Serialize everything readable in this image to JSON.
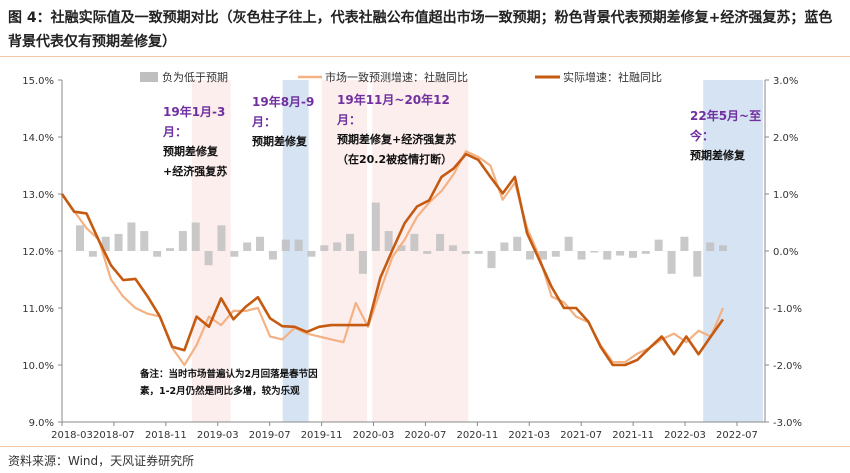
{
  "title": "图 4：社融实际值及一致预期对比（灰色柱子往上，代表社融公布值超出市场一致预期；粉色背景代表预期差修复+经济强复苏；蓝色背景代表仅有预期差修复）",
  "source": "资料来源：Wind，天风证券研究所",
  "annotations": [
    {
      "header": "19年1月-3月：",
      "body": "预期差修复+经济强复苏"
    },
    {
      "header": "19年8月-9月：",
      "body": "预期差修复"
    },
    {
      "header": "19年11月~20年12月：",
      "body": "预期差修复+经济强复苏（在20.2被疫情打断）"
    },
    {
      "header": "22年5月~至今：",
      "body": "预期差修复"
    }
  ],
  "note": "备注：当时市场普遍认为2月回落是春节因素，1-2月仍然是同比多增，较为乐观",
  "chart_data": {
    "type": "line",
    "title": "",
    "colors": {
      "actual": "#c55a11",
      "expected": "#f4b183",
      "bars": "#bfbfbf",
      "pink": "#fdeeee",
      "blue": "#d6e3f3"
    },
    "legend": [
      "负为低于预期",
      "市场一致预测增速：社融同比",
      "实际增速：社融同比"
    ],
    "legend_position": "top",
    "x_ticks": [
      "2018-03",
      "2018-07",
      "2018-11",
      "2019-03",
      "2019-07",
      "2019-11",
      "2020-03",
      "2020-07",
      "2020-11",
      "2021-03",
      "2021-07",
      "2021-11",
      "2022-03",
      "2022-07"
    ],
    "y_left": {
      "ticks": [
        "9.0%",
        "10.0%",
        "11.0%",
        "12.0%",
        "13.0%",
        "14.0%",
        "15.0%"
      ],
      "range": [
        9,
        15
      ]
    },
    "y_right": {
      "ticks": [
        "-3.0%",
        "-2.0%",
        "-1.0%",
        "0.0%",
        "1.0%",
        "2.0%",
        "3.0%"
      ],
      "range": [
        -3,
        3
      ]
    },
    "bands": [
      {
        "color": "pink",
        "start": 10,
        "end": 13
      },
      {
        "color": "blue",
        "start": 17,
        "end": 19
      },
      {
        "color": "pink",
        "start": 20,
        "end": 23.5
      },
      {
        "color": "pink",
        "start": 23.9,
        "end": 31.3
      },
      {
        "color": "blue",
        "start": 49.4,
        "end": 54
      }
    ],
    "series": [
      {
        "name": "实际增速：社融同比",
        "values": [
          13.0,
          12.69,
          12.66,
          12.19,
          11.75,
          11.49,
          11.51,
          11.2,
          10.85,
          10.32,
          10.26,
          10.85,
          10.67,
          11.17,
          10.8,
          11.02,
          11.19,
          10.82,
          10.68,
          10.67,
          10.58,
          10.67,
          10.7,
          10.7,
          10.7,
          10.7,
          11.53,
          12.02,
          12.49,
          12.78,
          12.89,
          13.3,
          13.45,
          13.7,
          13.6,
          13.3,
          13.01,
          13.3,
          12.31,
          11.84,
          11.37,
          11.0,
          11.0,
          10.76,
          10.32,
          10.0,
          10.0,
          10.09,
          10.3,
          10.5,
          10.19,
          10.5,
          10.19,
          10.5,
          10.8
        ]
      },
      {
        "name": "市场一致预测增速：社融同比",
        "values": [
          13.0,
          12.7,
          12.4,
          12.2,
          11.5,
          11.2,
          11.0,
          10.9,
          10.85,
          10.3,
          10.0,
          10.35,
          10.85,
          10.7,
          10.95,
          10.95,
          11.0,
          10.5,
          10.45,
          10.65,
          10.55,
          10.5,
          10.45,
          10.4,
          11.09,
          10.67,
          11.3,
          11.9,
          12.2,
          12.6,
          12.85,
          13.05,
          13.35,
          13.75,
          13.65,
          13.5,
          12.9,
          13.2,
          12.4,
          11.9,
          11.2,
          11.1,
          10.85,
          10.75,
          10.35,
          10.05,
          10.05,
          10.2,
          10.3,
          10.45,
          10.55,
          10.4,
          10.6,
          10.5,
          11.0
        ]
      },
      {
        "name": "负为低于预期",
        "values": [
          0.45,
          -0.1,
          0.25,
          0.3,
          0.5,
          0.35,
          -0.1,
          0.05,
          0.35,
          0.5,
          -0.25,
          0.45,
          -0.1,
          0.15,
          0.25,
          -0.15,
          0.2,
          0.2,
          -0.1,
          0.1,
          0.15,
          0.3,
          -0.4,
          0.85,
          0.35,
          0.1,
          0.3,
          -0.05,
          0.3,
          0.1,
          -0.05,
          -0.05,
          -0.3,
          0.15,
          0.25,
          -0.15,
          -0.15,
          -0.1,
          0.25,
          -0.15,
          -0.02,
          -0.15,
          -0.08,
          -0.12,
          -0.05,
          0.2,
          -0.4,
          0.25,
          -0.45,
          0.15,
          0.1
        ]
      }
    ]
  }
}
